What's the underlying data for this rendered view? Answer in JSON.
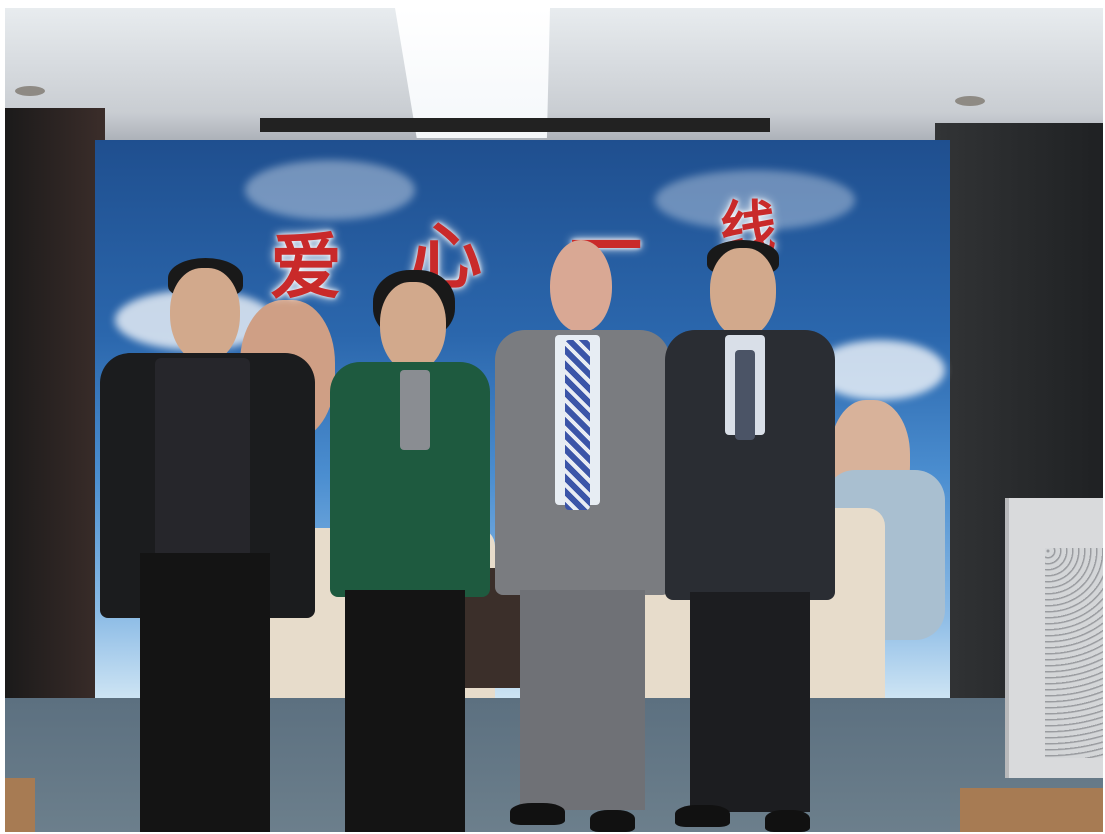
{
  "photo": {
    "slogan_chars": [
      "爱",
      "心",
      "一",
      "线"
    ],
    "palette": {
      "mural_sky": "#2b67ad",
      "slogan_red": "#c92a2a",
      "floor": "#5c7080",
      "green_jacket": "#1e5a3f",
      "grey_suit": "#7a7c80",
      "dark_suit": "#2a2d33",
      "black_jacket": "#1b1c1e"
    },
    "people_count": 4
  }
}
